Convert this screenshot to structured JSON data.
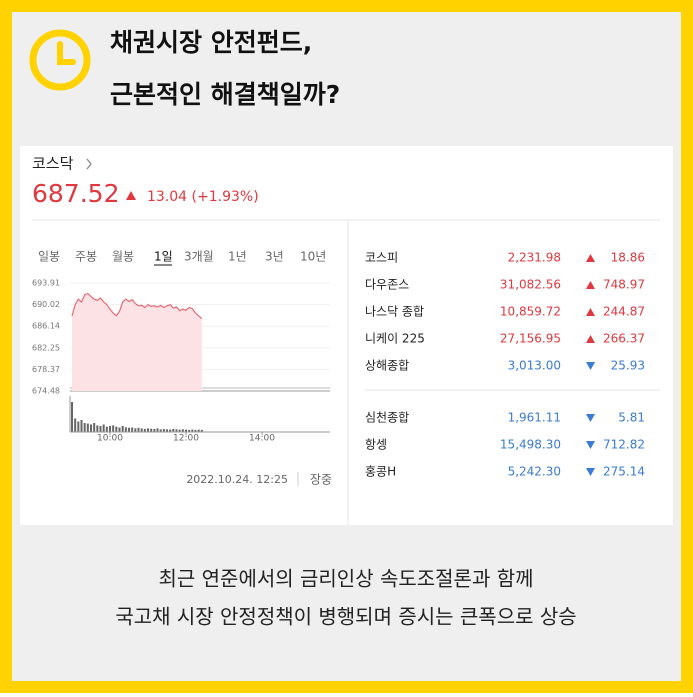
{
  "header": {
    "title": [
      "채권시장 안전펀드,",
      "근본적인 해결책일까?"
    ]
  },
  "widget": {
    "name": "코스닥",
    "price": "687.52",
    "change": "13.04",
    "change_pct": "(+1.93%)",
    "tabs": [
      "일봉",
      "주봉",
      "월봉",
      "1일",
      "3개월",
      "1년",
      "3년",
      "10년"
    ],
    "active_tab": 3,
    "chart_data": {
      "type": "line",
      "color": "#e86a74",
      "fill": "#fde2e5",
      "x": [
        0,
        5,
        10,
        15,
        20,
        25,
        30,
        35,
        40,
        45,
        50,
        55,
        60,
        65,
        70,
        75,
        80,
        85,
        90,
        95,
        100,
        105,
        110,
        115,
        120,
        125,
        130,
        135,
        140,
        145,
        150,
        155,
        160,
        165,
        170,
        175,
        180,
        185,
        190,
        195,
        200,
        205
      ],
      "values": [
        688.0,
        690.0,
        691.0,
        690.5,
        691.8,
        692.0,
        691.5,
        691.0,
        690.8,
        691.2,
        690.5,
        690.0,
        689.2,
        688.5,
        688.0,
        688.8,
        690.5,
        691.0,
        690.6,
        690.9,
        690.2,
        689.8,
        689.9,
        689.5,
        690.0,
        689.7,
        689.8,
        689.6,
        689.9,
        689.5,
        689.8,
        690.0,
        689.4,
        689.6,
        688.9,
        689.2,
        689.0,
        689.5,
        689.3,
        688.5,
        688.0,
        687.5
      ],
      "volume": [
        100,
        45,
        35,
        40,
        30,
        28,
        25,
        30,
        22,
        20,
        25,
        18,
        20,
        22,
        18,
        15,
        20,
        16,
        14,
        15,
        12,
        14,
        12,
        10,
        12,
        11,
        10,
        12,
        9,
        10,
        9,
        8,
        10,
        9,
        8,
        9,
        8,
        7,
        8,
        7,
        8,
        7
      ],
      "volume_lim": [
        0,
        100
      ],
      "xlim": [
        0,
        390
      ],
      "ylim": [
        674.48,
        693.91
      ],
      "yticks": [
        693.91,
        690.02,
        686.14,
        682.25,
        678.37,
        674.48
      ],
      "xticks": [
        {
          "value": 60,
          "label": "10:00"
        },
        {
          "value": 180,
          "label": "12:00"
        },
        {
          "value": 300,
          "label": "14:00"
        }
      ],
      "grid": true
    },
    "timestamp": "2022.10.24. 12:25",
    "session": "장중",
    "indices": [
      [
        {
          "name": "코스피",
          "value": "2,231.98",
          "change": "18.86",
          "direction": "up"
        },
        {
          "name": "다우존스",
          "value": "31,082.56",
          "change": "748.97",
          "direction": "up"
        },
        {
          "name": "나스닥 종합",
          "value": "10,859.72",
          "change": "244.87",
          "direction": "up"
        },
        {
          "name": "니케이 225",
          "value": "27,156.95",
          "change": "266.37",
          "direction": "up"
        },
        {
          "name": "상해종합",
          "value": "3,013.00",
          "change": "25.93",
          "direction": "down"
        }
      ],
      [
        {
          "name": "심천종합",
          "value": "1,961.11",
          "change": "5.81",
          "direction": "down"
        },
        {
          "name": "항셍",
          "value": "15,498.30",
          "change": "712.82",
          "direction": "down"
        },
        {
          "name": "홍콩H",
          "value": "5,242.30",
          "change": "275.14",
          "direction": "down"
        }
      ]
    ]
  },
  "caption": [
    "최근 연준에서의 금리인상 속도조절론과 함께",
    "국고채 시장 안정정책이 병행되며 증시는 큰폭으로 상승"
  ]
}
